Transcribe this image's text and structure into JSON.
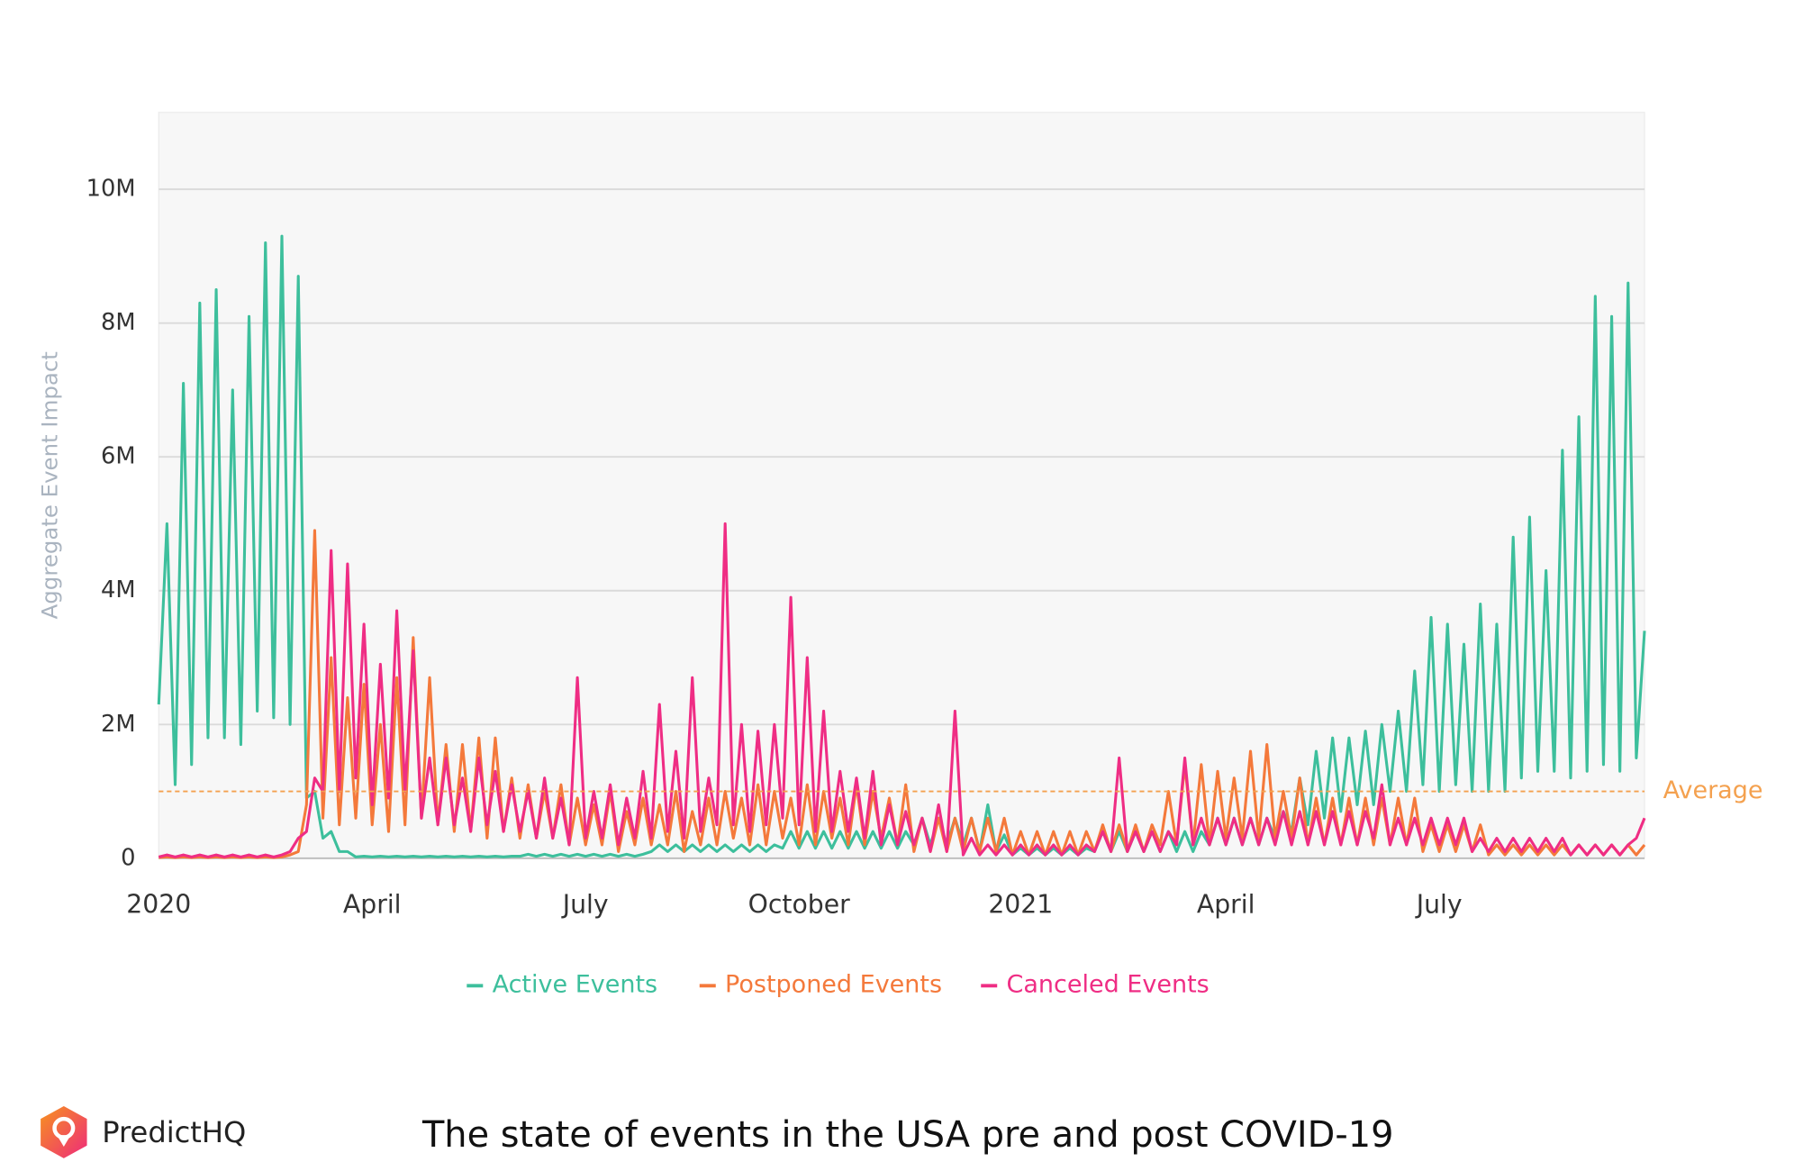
{
  "chart_data": {
    "type": "line",
    "ylabel": "Aggregate Event Impact",
    "categories": [
      "2020",
      null,
      null,
      null,
      null,
      null,
      null,
      null,
      null,
      null,
      null,
      null,
      null,
      null,
      null,
      null,
      null,
      null,
      null,
      null,
      null,
      null,
      null,
      null,
      null,
      null,
      "April",
      null,
      null,
      null,
      null,
      null,
      null,
      null,
      null,
      null,
      null,
      null,
      null,
      null,
      null,
      null,
      null,
      null,
      null,
      null,
      null,
      null,
      null,
      null,
      null,
      null,
      "July",
      null,
      null,
      null,
      null,
      null,
      null,
      null,
      null,
      null,
      null,
      null,
      null,
      null,
      null,
      null,
      null,
      null,
      null,
      null,
      null,
      null,
      null,
      null,
      null,
      null,
      "October",
      null,
      null,
      null,
      null,
      null,
      null,
      null,
      null,
      null,
      null,
      null,
      null,
      null,
      null,
      null,
      null,
      null,
      null,
      null,
      null,
      null,
      null,
      null,
      null,
      null,
      null,
      "2021",
      null,
      null,
      null,
      null,
      null,
      null,
      null,
      null,
      null,
      null,
      null,
      null,
      null,
      null,
      null,
      null,
      null,
      null,
      null,
      null,
      null,
      null,
      null,
      null,
      "April",
      null,
      null,
      null,
      null,
      null,
      null,
      null,
      null,
      null,
      null,
      null,
      null,
      null,
      null,
      null,
      null,
      null,
      null,
      null,
      null,
      null,
      null,
      null,
      null,
      null,
      "July",
      null,
      null,
      null,
      null,
      null,
      null,
      null,
      null,
      null,
      null,
      null,
      null,
      null,
      null,
      null,
      null,
      null,
      null,
      null,
      null,
      null,
      null,
      null,
      null,
      null
    ],
    "series": [
      {
        "name": "Active Events",
        "color": "#3dbf9c",
        "values": [
          2300000,
          5000000,
          1100000,
          7100000,
          1400000,
          8300000,
          1800000,
          8500000,
          1800000,
          7000000,
          1700000,
          8100000,
          2200000,
          9200000,
          2100000,
          9300000,
          2000000,
          8700000,
          900000,
          1000000,
          300000,
          400000,
          100000,
          100000,
          20000,
          30000,
          20000,
          30000,
          20000,
          30000,
          20000,
          30000,
          20000,
          30000,
          20000,
          30000,
          20000,
          30000,
          20000,
          30000,
          20000,
          30000,
          20000,
          30000,
          30000,
          60000,
          30000,
          60000,
          30000,
          60000,
          30000,
          60000,
          30000,
          60000,
          30000,
          60000,
          30000,
          60000,
          30000,
          60000,
          100000,
          200000,
          100000,
          200000,
          100000,
          200000,
          100000,
          200000,
          100000,
          200000,
          100000,
          200000,
          100000,
          200000,
          100000,
          200000,
          150000,
          400000,
          150000,
          400000,
          150000,
          400000,
          150000,
          400000,
          150000,
          400000,
          150000,
          400000,
          150000,
          400000,
          150000,
          400000,
          200000,
          600000,
          200000,
          600000,
          200000,
          600000,
          200000,
          600000,
          100000,
          800000,
          100000,
          350000,
          50000,
          150000,
          50000,
          150000,
          50000,
          150000,
          50000,
          150000,
          50000,
          150000,
          100000,
          400000,
          100000,
          400000,
          100000,
          400000,
          100000,
          400000,
          100000,
          400000,
          100000,
          400000,
          100000,
          400000,
          200000,
          600000,
          200000,
          600000,
          200000,
          600000,
          200000,
          600000,
          300000,
          700000,
          400000,
          1200000,
          500000,
          1600000,
          600000,
          1800000,
          700000,
          1800000,
          800000,
          1900000,
          800000,
          2000000,
          1000000,
          2200000,
          1000000,
          2800000,
          1100000,
          3600000,
          1000000,
          3500000,
          1100000,
          3200000,
          1000000,
          3800000,
          1000000,
          3500000,
          1000000,
          4800000,
          1200000,
          5100000,
          1300000,
          4300000,
          1300000,
          6100000,
          1200000,
          6600000,
          1300000,
          8400000,
          1400000,
          8100000,
          1300000,
          8600000,
          1500000,
          3400000
        ]
      },
      {
        "name": "Postponed Events",
        "color": "#f4793b",
        "values": [
          10000,
          20000,
          10000,
          20000,
          10000,
          20000,
          10000,
          20000,
          10000,
          20000,
          10000,
          20000,
          10000,
          20000,
          10000,
          20000,
          50000,
          100000,
          800000,
          4900000,
          600000,
          3000000,
          500000,
          2400000,
          600000,
          2600000,
          500000,
          2000000,
          400000,
          2700000,
          500000,
          3300000,
          600000,
          2700000,
          500000,
          1700000,
          400000,
          1700000,
          400000,
          1800000,
          300000,
          1800000,
          400000,
          1200000,
          300000,
          1100000,
          300000,
          1000000,
          300000,
          1100000,
          200000,
          900000,
          200000,
          800000,
          200000,
          1000000,
          100000,
          700000,
          200000,
          900000,
          200000,
          800000,
          200000,
          1000000,
          100000,
          700000,
          200000,
          900000,
          200000,
          1000000,
          300000,
          900000,
          200000,
          1100000,
          200000,
          1000000,
          300000,
          900000,
          200000,
          1100000,
          200000,
          1000000,
          300000,
          900000,
          200000,
          1100000,
          200000,
          1000000,
          300000,
          900000,
          200000,
          1100000,
          100000,
          600000,
          100000,
          600000,
          100000,
          600000,
          100000,
          600000,
          100000,
          600000,
          100000,
          600000,
          50000,
          400000,
          50000,
          400000,
          50000,
          400000,
          50000,
          400000,
          50000,
          400000,
          100000,
          500000,
          100000,
          500000,
          100000,
          500000,
          100000,
          500000,
          200000,
          1000000,
          200000,
          1400000,
          200000,
          1400000,
          200000,
          1300000,
          300000,
          1200000,
          300000,
          1600000,
          300000,
          1700000,
          300000,
          1000000,
          300000,
          1200000,
          200000,
          900000,
          200000,
          900000,
          200000,
          900000,
          200000,
          900000,
          200000,
          900000,
          200000,
          900000,
          200000,
          900000,
          100000,
          500000,
          100000,
          500000,
          100000,
          500000,
          100000,
          500000,
          50000,
          200000,
          50000,
          200000,
          50000,
          200000,
          50000,
          200000,
          50000,
          200000,
          50000,
          200000,
          50000,
          200000,
          50000,
          200000,
          50000,
          200000,
          50000,
          200000
        ]
      },
      {
        "name": "Canceled Events",
        "color": "#ef2d84",
        "values": [
          20000,
          50000,
          20000,
          50000,
          20000,
          50000,
          20000,
          50000,
          20000,
          50000,
          20000,
          50000,
          20000,
          50000,
          20000,
          50000,
          100000,
          300000,
          400000,
          1200000,
          1000000,
          4600000,
          1000000,
          4400000,
          1200000,
          3500000,
          800000,
          2900000,
          900000,
          3700000,
          1000000,
          3100000,
          600000,
          1500000,
          500000,
          1500000,
          500000,
          1200000,
          400000,
          1500000,
          500000,
          1300000,
          400000,
          1100000,
          400000,
          1000000,
          300000,
          1200000,
          300000,
          900000,
          200000,
          2700000,
          300000,
          1000000,
          300000,
          1100000,
          200000,
          900000,
          300000,
          1300000,
          300000,
          2300000,
          400000,
          1600000,
          300000,
          2700000,
          400000,
          1200000,
          500000,
          5000000,
          500000,
          2000000,
          400000,
          1900000,
          500000,
          2000000,
          600000,
          3900000,
          500000,
          3000000,
          400000,
          2200000,
          400000,
          1300000,
          400000,
          1200000,
          300000,
          1300000,
          200000,
          800000,
          200000,
          700000,
          200000,
          600000,
          100000,
          800000,
          100000,
          2200000,
          50000,
          300000,
          50000,
          200000,
          50000,
          200000,
          50000,
          200000,
          50000,
          200000,
          50000,
          200000,
          50000,
          200000,
          50000,
          200000,
          100000,
          400000,
          100000,
          1500000,
          100000,
          400000,
          100000,
          400000,
          100000,
          400000,
          200000,
          1500000,
          200000,
          600000,
          200000,
          600000,
          200000,
          600000,
          200000,
          600000,
          200000,
          600000,
          200000,
          700000,
          200000,
          700000,
          200000,
          700000,
          200000,
          700000,
          200000,
          700000,
          200000,
          700000,
          300000,
          1100000,
          200000,
          600000,
          200000,
          600000,
          200000,
          600000,
          200000,
          600000,
          200000,
          600000,
          100000,
          300000,
          100000,
          300000,
          100000,
          300000,
          100000,
          300000,
          100000,
          300000,
          100000,
          300000,
          50000,
          200000,
          50000,
          200000,
          50000,
          200000,
          50000,
          200000,
          300000,
          600000
        ]
      }
    ],
    "ylim": [
      0,
      11150000
    ],
    "yticks": [
      0,
      {
        "value": 2000000,
        "label": "2M"
      },
      {
        "value": 4000000,
        "label": "4M"
      },
      {
        "value": 6000000,
        "label": "6M"
      },
      {
        "value": 8000000,
        "label": "8M"
      },
      {
        "value": 10000000,
        "label": "10M"
      }
    ],
    "grid": true,
    "legend": "bottom",
    "average": {
      "value": 1000000,
      "label": "Average",
      "color": "#f4a14f"
    }
  },
  "footer": {
    "brand": "PredictHQ",
    "caption": "The state of events in the USA pre and post COVID-19"
  }
}
